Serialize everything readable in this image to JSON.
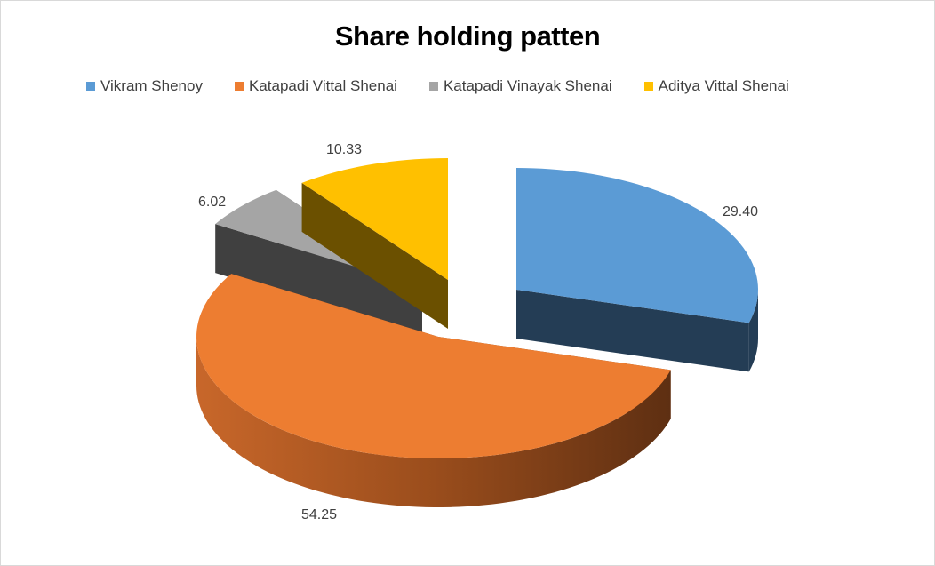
{
  "chart_data": {
    "type": "pie",
    "title": "Share holding patten",
    "style": "3d-exploded",
    "legend_position": "top",
    "categories": [
      "Vikram Shenoy",
      "Katapadi Vittal Shenai",
      "Katapadi Vinayak Shenai",
      "Aditya Vittal Shenai"
    ],
    "values": [
      29.4,
      54.25,
      6.02,
      10.33
    ],
    "data_labels": [
      "29.40",
      "54.25",
      "6.02",
      "10.33"
    ],
    "colors": [
      "#5b9bd5",
      "#ed7d31",
      "#a5a5a5",
      "#ffc000"
    ]
  }
}
